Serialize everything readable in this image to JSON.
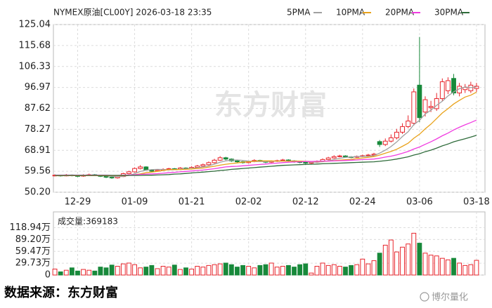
{
  "chart_data": [
    {
      "type": "candlestick",
      "title": "NYMEX原油[CL00Y] 2026-03-18 23:35",
      "watermark": "东方财富",
      "categories": [
        null,
        null,
        null,
        null,
        "12-29",
        null,
        null,
        null,
        null,
        null,
        null,
        null,
        null,
        null,
        "01-09",
        null,
        null,
        null,
        null,
        null,
        null,
        null,
        null,
        null,
        "01-21",
        null,
        null,
        null,
        null,
        null,
        null,
        null,
        null,
        null,
        "02-02",
        null,
        null,
        null,
        null,
        null,
        null,
        null,
        null,
        null,
        "02-12",
        null,
        null,
        null,
        null,
        null,
        null,
        null,
        null,
        null,
        "02-24",
        null,
        null,
        null,
        null,
        null,
        null,
        null,
        null,
        null,
        "03-06",
        null,
        null,
        null,
        null,
        null,
        null,
        null,
        null,
        null,
        "03-18"
      ],
      "open": [
        57.6,
        57.8,
        57.5,
        57.9,
        57.6,
        57.4,
        57.8,
        58.0,
        57.7,
        57.3,
        56.9,
        56.6,
        57.2,
        58.5,
        59.3,
        60.8,
        61.5,
        60.2,
        59.6,
        60.0,
        60.4,
        60.7,
        60.5,
        61.0,
        60.8,
        61.3,
        61.9,
        62.5,
        63.4,
        64.5,
        65.6,
        65.0,
        64.2,
        63.8,
        63.4,
        63.9,
        64.4,
        64.1,
        63.6,
        64.0,
        64.3,
        64.6,
        64.2,
        63.8,
        63.5,
        63.2,
        63.6,
        64.0,
        64.8,
        65.5,
        66.1,
        66.4,
        66.0,
        65.8,
        66.2,
        66.5,
        66.8,
        72.8,
        71.5,
        73.0,
        74.5,
        77.0,
        79.5,
        81.0,
        98.0,
        86.0,
        88.0,
        87.5,
        92.0,
        95.5,
        101.0,
        94.5,
        96.0,
        95.5,
        96.5
      ],
      "high": [
        58.2,
        58.0,
        58.3,
        58.1,
        57.9,
        58.2,
        58.5,
        58.3,
        57.9,
        57.5,
        57.2,
        57.6,
        58.9,
        59.8,
        61.3,
        62.3,
        61.8,
        60.5,
        60.4,
        60.9,
        61.1,
        61.0,
        61.4,
        61.3,
        61.8,
        62.4,
        63.0,
        63.9,
        65.1,
        66.3,
        66.0,
        65.3,
        64.6,
        64.1,
        64.3,
        64.9,
        64.7,
        64.3,
        64.4,
        64.7,
        65.1,
        64.9,
        64.5,
        64.1,
        63.8,
        64.0,
        64.4,
        65.3,
        66.0,
        66.7,
        66.9,
        66.7,
        66.3,
        66.6,
        67.0,
        67.3,
        67.8,
        73.5,
        74.2,
        76.0,
        78.5,
        81.0,
        84.5,
        96.5,
        119.5,
        93.0,
        91.0,
        94.5,
        101.0,
        101.5,
        103.0,
        99.0,
        98.5,
        99.5,
        99.0
      ],
      "low": [
        57.3,
        57.2,
        57.3,
        57.3,
        57.0,
        57.1,
        57.5,
        57.4,
        57.0,
        56.5,
        56.2,
        56.3,
        57.0,
        58.2,
        59.0,
        60.4,
        59.8,
        59.2,
        59.3,
        59.7,
        60.0,
        60.1,
        60.2,
        60.4,
        60.5,
        61.0,
        61.6,
        62.2,
        63.0,
        64.2,
        64.5,
        63.8,
        63.4,
        63.0,
        63.1,
        63.6,
        63.7,
        63.2,
        63.3,
        63.7,
        64.0,
        63.9,
        63.4,
        63.1,
        62.8,
        62.9,
        63.3,
        63.7,
        64.5,
        65.2,
        65.8,
        65.6,
        65.4,
        65.5,
        65.9,
        66.2,
        66.4,
        70.4,
        70.8,
        72.4,
        73.8,
        76.2,
        78.8,
        80.0,
        81.5,
        84.0,
        86.0,
        86.5,
        91.0,
        94.0,
        93.5,
        93.0,
        94.5,
        94.5,
        95.0
      ],
      "close": [
        57.8,
        57.5,
        57.9,
        57.6,
        57.4,
        57.8,
        58.0,
        57.7,
        57.3,
        56.9,
        56.6,
        57.2,
        58.5,
        59.3,
        60.8,
        61.5,
        60.2,
        59.6,
        60.0,
        60.4,
        60.7,
        60.5,
        61.0,
        60.8,
        61.3,
        61.9,
        62.5,
        63.4,
        64.5,
        65.6,
        65.0,
        64.2,
        63.8,
        63.4,
        63.9,
        64.4,
        64.1,
        63.6,
        64.0,
        64.3,
        64.6,
        64.2,
        63.8,
        63.5,
        63.2,
        63.6,
        64.0,
        64.8,
        65.5,
        66.1,
        66.4,
        66.0,
        65.8,
        66.2,
        66.5,
        66.8,
        67.2,
        71.5,
        73.0,
        74.5,
        77.0,
        79.5,
        82.0,
        95.0,
        83.5,
        91.5,
        88.5,
        92.0,
        99.5,
        100.0,
        94.5,
        97.5,
        97.0,
        98.0,
        97.5
      ],
      "up_color": "#e8242b",
      "down_color": "#17893a",
      "series": [
        {
          "name": "5PMA",
          "color": "#a0a0a0",
          "values": [
            57.7,
            57.6,
            57.7,
            57.7,
            57.6,
            57.64,
            57.74,
            57.7,
            57.64,
            57.54,
            57.3,
            57.14,
            57.3,
            57.7,
            58.48,
            59.46,
            60.06,
            60.28,
            60.42,
            60.34,
            60.18,
            60.24,
            60.52,
            60.68,
            60.86,
            61.1,
            61.5,
            61.98,
            62.72,
            63.58,
            64.2,
            64.54,
            64.62,
            64.4,
            64.06,
            63.94,
            63.92,
            63.88,
            64.0,
            64.08,
            64.12,
            64.14,
            64.18,
            64.08,
            63.86,
            63.66,
            63.62,
            63.82,
            64.22,
            64.8,
            65.36,
            65.76,
            65.96,
            66.1,
            66.18,
            66.26,
            66.5,
            67.64,
            69.0,
            70.6,
            72.64,
            75.1,
            77.2,
            80.4,
            82.3,
            85.1,
            86.8,
            89.0,
            90.8,
            93.2,
            95.0,
            96.4,
            97.2,
            96.9,
            97.2
          ]
        },
        {
          "name": "10PMA",
          "color": "#e9a21a",
          "values": [
            57.6,
            57.6,
            57.6,
            57.6,
            57.6,
            57.6,
            57.6,
            57.6,
            57.6,
            57.6,
            57.6,
            57.6,
            57.6,
            57.7,
            58.0,
            58.4,
            58.9,
            59.2,
            59.5,
            59.9,
            60.3,
            60.3,
            60.3,
            60.4,
            60.6,
            60.8,
            61.0,
            61.4,
            61.8,
            62.3,
            62.7,
            63.0,
            63.3,
            63.6,
            63.8,
            64.0,
            64.2,
            64.2,
            64.2,
            64.1,
            64.1,
            64.1,
            64.1,
            64.1,
            64.0,
            63.9,
            63.9,
            64.0,
            64.1,
            64.3,
            64.5,
            64.7,
            64.9,
            65.2,
            65.5,
            65.8,
            66.1,
            66.8,
            67.6,
            68.4,
            69.4,
            70.7,
            72.1,
            74.3,
            76.1,
            78.5,
            80.6,
            83.1,
            85.6,
            87.5,
            89.6,
            91.2,
            92.7,
            93.5,
            94.9
          ]
        },
        {
          "name": "20PMA",
          "color": "#f03ce0",
          "values": [
            57.8,
            57.8,
            57.8,
            57.8,
            57.8,
            57.8,
            57.8,
            57.8,
            57.8,
            57.8,
            57.7,
            57.7,
            57.8,
            57.9,
            58.0,
            58.2,
            58.3,
            58.4,
            58.5,
            58.7,
            58.9,
            59.1,
            59.3,
            59.5,
            59.7,
            59.9,
            60.1,
            60.4,
            60.7,
            61.1,
            61.5,
            61.7,
            61.8,
            62.0,
            62.2,
            62.4,
            62.6,
            62.8,
            63.0,
            63.2,
            63.4,
            63.6,
            63.7,
            63.8,
            63.9,
            63.9,
            64.0,
            64.1,
            64.1,
            64.2,
            64.3,
            64.4,
            64.5,
            64.6,
            64.8,
            64.9,
            65.0,
            65.4,
            65.9,
            66.3,
            66.9,
            67.6,
            68.4,
            69.5,
            70.4,
            71.6,
            72.7,
            74.0,
            75.4,
            76.6,
            78.0,
            79.2,
            80.3,
            81.3,
            82.4
          ]
        },
        {
          "name": "30PMA",
          "color": "#2e6b3a",
          "values": [
            57.7,
            57.7,
            57.7,
            57.7,
            57.7,
            57.7,
            57.7,
            57.7,
            57.7,
            57.7,
            57.7,
            57.7,
            57.7,
            57.7,
            57.7,
            57.7,
            57.8,
            57.8,
            57.9,
            58.0,
            58.1,
            58.3,
            58.4,
            58.6,
            58.8,
            59.0,
            59.2,
            59.4,
            59.6,
            59.9,
            60.1,
            60.4,
            60.6,
            60.8,
            61.0,
            61.2,
            61.4,
            61.6,
            61.8,
            62.0,
            62.2,
            62.3,
            62.4,
            62.5,
            62.6,
            62.7,
            62.8,
            62.9,
            63.0,
            63.1,
            63.2,
            63.3,
            63.4,
            63.5,
            63.6,
            63.7,
            63.8,
            64.0,
            64.3,
            64.6,
            65.0,
            65.5,
            66.0,
            66.8,
            67.4,
            68.3,
            69.0,
            69.9,
            70.9,
            71.7,
            72.7,
            73.4,
            74.1,
            74.8,
            75.6
          ]
        }
      ],
      "ylim": [
        50.2,
        125.04
      ],
      "yticks": [
        {
          "value": 50.2,
          "label": "50.20"
        },
        59.56,
        68.91,
        78.27,
        87.62,
        96.97,
        106.33,
        115.68,
        125.04
      ],
      "grid": true
    },
    {
      "type": "bar",
      "label": "成交量:369183",
      "values": [
        15,
        8,
        12,
        18,
        10,
        14,
        12,
        10,
        20,
        18,
        25,
        22,
        28,
        30,
        26,
        18,
        20,
        24,
        16,
        22,
        20,
        25,
        14,
        18,
        15,
        22,
        20,
        24,
        26,
        28,
        30,
        26,
        20,
        24,
        22,
        18,
        24,
        26,
        30,
        20,
        22,
        24,
        20,
        26,
        28,
        5,
        22,
        30,
        24,
        26,
        22,
        20,
        24,
        26,
        40,
        28,
        36,
        55,
        75,
        88,
        58,
        70,
        78,
        105,
        80,
        55,
        50,
        48,
        42,
        38,
        42,
        30,
        24,
        26,
        36.92
      ],
      "ylim": [
        0,
        158.6
      ],
      "yticks": [
        0,
        {
          "value": 29.73,
          "label": "29.73万"
        },
        {
          "value": 59.47,
          "label": "59.47万"
        },
        {
          "value": 89.2,
          "label": "89.20万"
        },
        {
          "value": 118.94,
          "label": "118.94万"
        }
      ],
      "grid": true
    }
  ],
  "source": "数据来源：东方财富",
  "brand": "博尔量化"
}
